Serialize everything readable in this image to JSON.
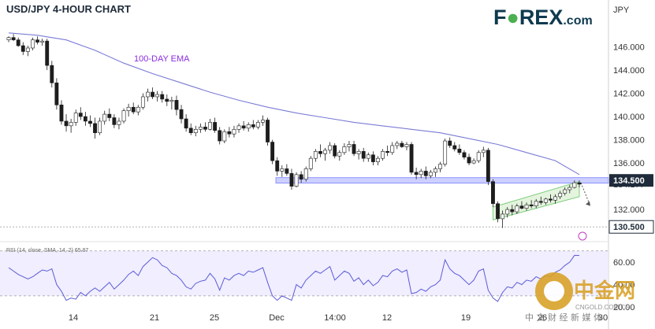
{
  "header": {
    "title": "USD/JPY 4-HOUR CHART",
    "currency": "JPY",
    "logo": {
      "text_pre": "F",
      "text_mid": "REX",
      "text_post": ".com",
      "colors": {
        "dark": "#0f3a4f",
        "green": "#4caf50"
      }
    }
  },
  "watermark": {
    "brand": "中金网",
    "site": "CNGOLD.COM.CN",
    "subtitle": "中 文 财 经 新 媒 体",
    "colors": {
      "gold": "#d9a22a",
      "gray": "#999999"
    }
  },
  "chart_data": [
    {
      "type": "candlestick",
      "title": "USD/JPY 4-HOUR CHART",
      "ylim": [
        129.5,
        148.0
      ],
      "y_ticks": [
        132.0,
        134.177,
        136.0,
        138.0,
        140.0,
        142.0,
        144.0,
        146.0
      ],
      "x_ticks": [
        "14",
        "21",
        "25",
        "Dec",
        "14:00",
        "12",
        "19",
        "26",
        "30"
      ],
      "price_labels": [
        {
          "value": 134.5,
          "text": "134.500",
          "style": "dark"
        },
        {
          "value": 134.177,
          "text": "134.177",
          "style": "plain"
        },
        {
          "value": 130.5,
          "text": "130.500",
          "style": "outlined"
        }
      ],
      "levels": [
        {
          "name": "support",
          "value": 134.5,
          "color": "#6b72ff"
        },
        {
          "name": "low",
          "value": 130.5,
          "color": "#9a9a9a"
        }
      ],
      "candles": [
        [
          146.6,
          146.9,
          146.4,
          146.8
        ],
        [
          146.8,
          147.1,
          146.5,
          146.6
        ],
        [
          146.6,
          146.8,
          146.0,
          146.1
        ],
        [
          146.1,
          146.4,
          145.3,
          145.6
        ],
        [
          145.6,
          146.1,
          145.2,
          145.9
        ],
        [
          145.9,
          146.8,
          145.7,
          146.6
        ],
        [
          146.6,
          146.9,
          146.2,
          146.4
        ],
        [
          146.4,
          146.7,
          146.1,
          146.5
        ],
        [
          146.5,
          146.7,
          144.0,
          144.4
        ],
        [
          144.4,
          144.8,
          142.5,
          142.9
        ],
        [
          142.9,
          143.3,
          140.6,
          141.0
        ],
        [
          141.0,
          141.4,
          139.3,
          139.6
        ],
        [
          139.6,
          140.2,
          138.7,
          139.2
        ],
        [
          139.2,
          139.8,
          138.6,
          139.5
        ],
        [
          139.5,
          140.6,
          139.2,
          140.3
        ],
        [
          140.3,
          140.8,
          139.7,
          140.0
        ],
        [
          140.0,
          140.4,
          139.2,
          139.6
        ],
        [
          139.6,
          140.1,
          139.1,
          139.4
        ],
        [
          139.4,
          139.9,
          138.1,
          138.6
        ],
        [
          138.6,
          139.9,
          138.4,
          139.6
        ],
        [
          139.6,
          140.5,
          139.3,
          140.2
        ],
        [
          140.2,
          140.7,
          139.6,
          139.9
        ],
        [
          139.9,
          140.2,
          139.0,
          139.3
        ],
        [
          139.3,
          139.9,
          138.9,
          139.6
        ],
        [
          139.6,
          140.7,
          139.4,
          140.5
        ],
        [
          140.5,
          141.1,
          140.0,
          140.8
        ],
        [
          140.8,
          141.2,
          140.2,
          140.4
        ],
        [
          140.4,
          141.0,
          140.1,
          140.8
        ],
        [
          140.8,
          142.0,
          140.6,
          141.7
        ],
        [
          141.7,
          142.4,
          141.3,
          142.1
        ],
        [
          142.1,
          142.5,
          141.5,
          141.7
        ],
        [
          141.7,
          142.2,
          141.3,
          141.9
        ],
        [
          141.9,
          142.2,
          141.2,
          141.5
        ],
        [
          141.5,
          141.9,
          140.9,
          141.3
        ],
        [
          141.3,
          141.7,
          140.6,
          141.4
        ],
        [
          141.4,
          141.8,
          140.1,
          140.6
        ],
        [
          140.6,
          141.0,
          139.4,
          139.8
        ],
        [
          139.8,
          140.2,
          138.7,
          139.0
        ],
        [
          139.0,
          139.4,
          138.4,
          138.6
        ],
        [
          138.6,
          139.2,
          138.3,
          138.9
        ],
        [
          138.9,
          139.4,
          138.6,
          139.1
        ],
        [
          139.1,
          139.5,
          138.7,
          138.9
        ],
        [
          138.9,
          139.8,
          138.8,
          139.5
        ],
        [
          139.5,
          139.9,
          138.6,
          138.8
        ],
        [
          138.8,
          139.1,
          137.6,
          137.9
        ],
        [
          137.9,
          138.9,
          137.7,
          138.7
        ],
        [
          138.7,
          139.1,
          138.2,
          138.5
        ],
        [
          138.5,
          139.2,
          138.2,
          138.9
        ],
        [
          138.9,
          139.4,
          138.6,
          139.2
        ],
        [
          139.2,
          139.6,
          138.8,
          139.0
        ],
        [
          139.0,
          139.5,
          138.7,
          139.3
        ],
        [
          139.3,
          139.7,
          138.9,
          139.1
        ],
        [
          139.1,
          139.7,
          138.9,
          139.5
        ],
        [
          139.5,
          140.1,
          139.2,
          139.7
        ],
        [
          139.7,
          139.9,
          137.5,
          137.8
        ],
        [
          137.8,
          138.0,
          135.9,
          136.2
        ],
        [
          136.2,
          136.5,
          134.9,
          135.3
        ],
        [
          135.3,
          135.8,
          134.8,
          135.5
        ],
        [
          135.5,
          135.9,
          134.9,
          135.1
        ],
        [
          135.1,
          135.5,
          133.7,
          134.0
        ],
        [
          134.0,
          135.2,
          133.9,
          135.0
        ],
        [
          135.0,
          135.3,
          134.3,
          134.6
        ],
        [
          134.6,
          135.7,
          134.4,
          135.5
        ],
        [
          135.5,
          136.6,
          135.3,
          136.4
        ],
        [
          136.4,
          137.2,
          136.1,
          137.0
        ],
        [
          137.0,
          137.6,
          136.5,
          136.8
        ],
        [
          136.8,
          137.3,
          136.2,
          137.1
        ],
        [
          137.1,
          137.8,
          136.8,
          137.5
        ],
        [
          137.5,
          137.7,
          136.4,
          136.6
        ],
        [
          136.6,
          137.1,
          136.2,
          136.9
        ],
        [
          136.9,
          137.7,
          136.7,
          137.4
        ],
        [
          137.4,
          137.9,
          137.0,
          137.6
        ],
        [
          137.6,
          137.9,
          136.6,
          136.8
        ],
        [
          136.8,
          137.2,
          136.3,
          137.0
        ],
        [
          137.0,
          137.3,
          136.1,
          136.4
        ],
        [
          136.4,
          136.9,
          136.1,
          136.7
        ],
        [
          136.7,
          137.0,
          135.8,
          136.1
        ],
        [
          136.1,
          136.6,
          135.8,
          136.4
        ],
        [
          136.4,
          137.2,
          136.2,
          137.0
        ],
        [
          137.0,
          137.5,
          136.6,
          136.9
        ],
        [
          136.9,
          137.8,
          136.7,
          137.5
        ],
        [
          137.5,
          137.9,
          137.2,
          137.7
        ],
        [
          137.7,
          137.9,
          137.3,
          137.4
        ],
        [
          137.4,
          137.8,
          137.1,
          137.6
        ],
        [
          137.6,
          137.8,
          135.0,
          135.2
        ],
        [
          135.2,
          135.6,
          134.6,
          135.0
        ],
        [
          135.0,
          135.5,
          134.7,
          135.3
        ],
        [
          135.3,
          135.7,
          134.6,
          134.9
        ],
        [
          134.9,
          135.4,
          134.7,
          135.2
        ],
        [
          135.2,
          135.7,
          134.8,
          135.5
        ],
        [
          135.5,
          136.1,
          135.2,
          135.9
        ],
        [
          135.9,
          138.1,
          135.7,
          137.9
        ],
        [
          137.9,
          138.2,
          137.3,
          137.5
        ],
        [
          137.5,
          137.8,
          137.0,
          137.2
        ],
        [
          137.2,
          137.6,
          136.7,
          136.9
        ],
        [
          136.9,
          137.1,
          136.3,
          136.5
        ],
        [
          136.5,
          136.8,
          135.8,
          136.0
        ],
        [
          136.0,
          136.4,
          135.9,
          136.2
        ],
        [
          136.2,
          137.1,
          136.0,
          136.9
        ],
        [
          136.9,
          137.4,
          136.5,
          137.1
        ],
        [
          137.1,
          137.3,
          134.1,
          134.4
        ],
        [
          134.4,
          134.6,
          132.2,
          132.5
        ],
        [
          132.5,
          132.7,
          130.9,
          131.2
        ],
        [
          131.2,
          131.9,
          130.4,
          131.6
        ],
        [
          131.6,
          132.2,
          131.3,
          132.0
        ],
        [
          132.0,
          132.4,
          131.5,
          131.8
        ],
        [
          131.8,
          132.5,
          131.6,
          132.3
        ],
        [
          132.3,
          132.7,
          132.0,
          132.1
        ],
        [
          132.1,
          132.6,
          131.9,
          132.4
        ],
        [
          132.4,
          132.8,
          132.1,
          132.3
        ],
        [
          132.3,
          132.9,
          132.1,
          132.7
        ],
        [
          132.7,
          133.1,
          132.4,
          132.6
        ],
        [
          132.6,
          133.0,
          132.4,
          132.9
        ],
        [
          132.9,
          133.3,
          132.6,
          132.8
        ],
        [
          132.8,
          133.3,
          132.5,
          133.1
        ],
        [
          133.1,
          133.6,
          132.9,
          133.4
        ],
        [
          133.4,
          133.9,
          133.2,
          133.7
        ],
        [
          133.7,
          134.1,
          133.4,
          133.9
        ],
        [
          133.9,
          134.5,
          133.8,
          134.3
        ],
        [
          134.3,
          134.5,
          133.9,
          134.18
        ]
      ],
      "ema": {
        "name": "100-DAY EMA",
        "color": "#7b7bd6",
        "points": [
          [
            0,
            147.2
          ],
          [
            6,
            147.0
          ],
          [
            12,
            146.6
          ],
          [
            18,
            145.7
          ],
          [
            24,
            144.6
          ],
          [
            30,
            143.7
          ],
          [
            36,
            142.9
          ],
          [
            42,
            142.1
          ],
          [
            48,
            141.4
          ],
          [
            54,
            140.8
          ],
          [
            60,
            140.3
          ],
          [
            66,
            139.9
          ],
          [
            72,
            139.5
          ],
          [
            78,
            139.2
          ],
          [
            84,
            138.9
          ],
          [
            90,
            138.6
          ],
          [
            96,
            138.1
          ],
          [
            102,
            137.6
          ],
          [
            108,
            136.9
          ],
          [
            114,
            136.2
          ],
          [
            119,
            135.0
          ]
        ]
      },
      "channel": {
        "color": "#7fce7f",
        "lower": [
          [
            101,
            131.1
          ],
          [
            119,
            133.1
          ]
        ],
        "upper": [
          [
            101,
            132.2
          ],
          [
            119,
            134.4
          ]
        ]
      }
    },
    {
      "type": "line",
      "title": "RSI (14, close, SMA, 14, 2) 65.87",
      "ylim": [
        18,
        74
      ],
      "y_ticks": [
        20.0,
        40.0,
        60.0
      ],
      "band": [
        30,
        70
      ],
      "color": "#5b5bd6",
      "values": [
        55,
        52,
        49,
        47,
        45,
        47,
        50,
        53,
        52,
        54,
        40,
        34,
        26,
        28,
        27,
        33,
        30,
        34,
        37,
        34,
        38,
        42,
        36,
        40,
        44,
        49,
        52,
        48,
        56,
        60,
        64,
        62,
        57,
        55,
        50,
        48,
        44,
        38,
        36,
        41,
        43,
        44,
        50,
        45,
        35,
        46,
        44,
        48,
        50,
        48,
        52,
        51,
        53,
        55,
        42,
        30,
        26,
        30,
        28,
        26,
        40,
        37,
        44,
        48,
        52,
        50,
        53,
        56,
        44,
        48,
        52,
        50,
        43,
        46,
        40,
        44,
        39,
        42,
        48,
        47,
        52,
        54,
        51,
        53,
        32,
        33,
        36,
        34,
        38,
        40,
        44,
        62,
        54,
        50,
        48,
        44,
        40,
        44,
        52,
        54,
        35,
        28,
        25,
        33,
        38,
        37,
        42,
        40,
        44,
        43,
        47,
        45,
        48,
        47,
        51,
        53,
        57,
        60,
        66,
        65.87
      ]
    }
  ]
}
